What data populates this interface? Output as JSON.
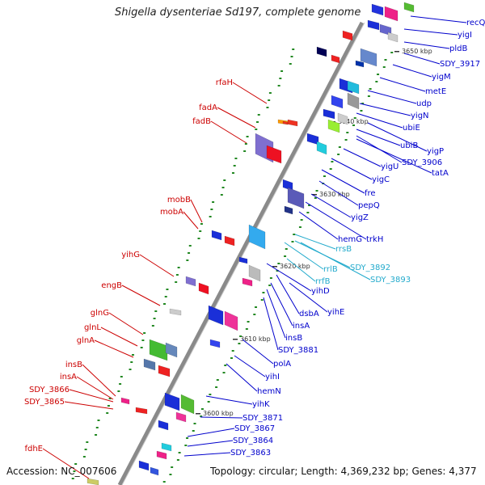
{
  "title": "Shigella dysenteriae Sd197, complete genome",
  "accession": "Accession: NC_007606",
  "topology": "Topology: circular; Length: 4,369,232 bp; Genes: 4,377",
  "colors": {
    "left_label": "#cc0000",
    "right_label": "#0000cc",
    "rna_label": "#22aacc",
    "backbone": "#8a8a8a"
  },
  "kbp_ticks": [
    {
      "id": "kbp-3650",
      "text": "3650 kbp"
    },
    {
      "id": "kbp-3640",
      "text": "3640 kbp"
    },
    {
      "id": "kbp-3630",
      "text": "3630 kbp"
    },
    {
      "id": "kbp-3620",
      "text": "3620 kbp"
    },
    {
      "id": "kbp-3610",
      "text": "3610 kbp"
    },
    {
      "id": "kbp-3600",
      "text": "3600 kbp"
    }
  ],
  "left_labels": [
    "rfaH",
    "fadA",
    "fadB",
    "mobB",
    "mobA",
    "yihG",
    "engB",
    "glnG",
    "glnL",
    "glnA",
    "insB",
    "insA",
    "SDY_3866",
    "SDY_3865",
    "fdhE"
  ],
  "right_labels": [
    "recQ",
    "yigI",
    "pldB",
    "SDY_3917",
    "yigM",
    "metE",
    "udp",
    "yigN",
    "ubiE",
    "yigP",
    "ubiB",
    "SDY_3906",
    "tatA",
    "yigU",
    "yigC",
    "fre",
    "pepQ",
    "yigZ",
    "trkH",
    "hemG",
    "yihD",
    "dsbA",
    "yihE",
    "insA",
    "insB",
    "SDY_3881",
    "polA",
    "yihI",
    "hemN",
    "yihK",
    "SDY_3871",
    "SDY_3867",
    "SDY_3864",
    "SDY_3863"
  ],
  "rna_labels": [
    "rrsB",
    "rrlB",
    "SDY_3892",
    "SDY_3893",
    "rrfB"
  ]
}
